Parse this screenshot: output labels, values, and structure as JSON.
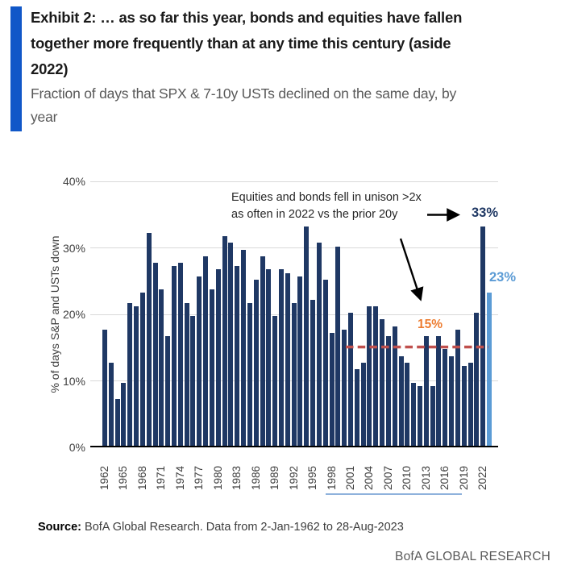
{
  "header": {
    "accent_color": "#1057c8",
    "title_lines": [
      "Exhibit 2: … as so far this year, bonds and equities have fallen",
      "together more frequently than at any time this century (aside",
      "2022)"
    ],
    "subtitle_lines": [
      "Fraction of days that SPX & 7-10y USTs declined on the same day, by",
      "year"
    ]
  },
  "chart_data": {
    "type": "bar",
    "title": "Exhibit 2: … as so far this year, bonds and equities have fallen together more frequently than at any time this century (aside 2022)",
    "subtitle": "Fraction of days that SPX & 7-10y USTs declined on the same day, by year",
    "xlabel": "",
    "ylabel": "% of days S&P and USTs down",
    "ylim": [
      0,
      40
    ],
    "grid": "horizontal",
    "legend": "none",
    "ytick_labels": [
      "0%",
      "10%",
      "20%",
      "30%",
      "40%"
    ],
    "ytick_values": [
      0,
      10,
      20,
      30,
      40
    ],
    "xtick_years": [
      1962,
      1965,
      1968,
      1971,
      1974,
      1977,
      1980,
      1983,
      1986,
      1989,
      1992,
      1995,
      1998,
      2001,
      2004,
      2007,
      2010,
      2013,
      2016,
      2019,
      2022
    ],
    "categories": [
      1962,
      1963,
      1964,
      1965,
      1966,
      1967,
      1968,
      1969,
      1970,
      1971,
      1972,
      1973,
      1974,
      1975,
      1976,
      1977,
      1978,
      1979,
      1980,
      1981,
      1982,
      1983,
      1984,
      1985,
      1986,
      1987,
      1988,
      1989,
      1990,
      1991,
      1992,
      1993,
      1994,
      1995,
      1996,
      1997,
      1998,
      1999,
      2000,
      2001,
      2002,
      2003,
      2004,
      2005,
      2006,
      2007,
      2008,
      2009,
      2010,
      2011,
      2012,
      2013,
      2014,
      2015,
      2016,
      2017,
      2018,
      2019,
      2020,
      2021,
      2022,
      2023
    ],
    "values": [
      17.5,
      12.5,
      7,
      9.5,
      21.5,
      21,
      23,
      32,
      27.5,
      23.5,
      16.5,
      27,
      27.5,
      21.5,
      19.5,
      25.5,
      28.5,
      23.5,
      26.5,
      31.5,
      30.5,
      27,
      29.5,
      21.5,
      25,
      28.5,
      26.5,
      19.5,
      26.5,
      26,
      21.5,
      25.5,
      33,
      22,
      30.5,
      25,
      17,
      30,
      17.5,
      20,
      11.5,
      12.5,
      21,
      21,
      19,
      16.5,
      18,
      13.5,
      12.5,
      9.5,
      9,
      16.5,
      9,
      16.5,
      14.5,
      13.5,
      17.5,
      12,
      12.5,
      20,
      33,
      23
    ],
    "bar_color": "#1f3864",
    "highlight": {
      "year": 2023,
      "color": "#5b9bd5",
      "label": "23%"
    },
    "peak_label": {
      "year": 2022,
      "text": "33%",
      "color": "#1f3864"
    },
    "reference_line": {
      "value": 15,
      "label": "15%",
      "line_color": "#c0504d",
      "label_color": "#ed7d31",
      "x_span_years": [
        2001,
        2023
      ]
    },
    "annotation": {
      "lines": [
        "Equities and bonds fell in unison >2x",
        "as often in 2022 vs the prior 20y"
      ],
      "arrow_color": "#000000"
    }
  },
  "source": {
    "prefix": "Source:",
    "text": " BofA Global Research. Data from 2-Jan-1962 to 28-Aug-2023"
  },
  "footer": {
    "brand": "BofA GLOBAL RESEARCH"
  }
}
